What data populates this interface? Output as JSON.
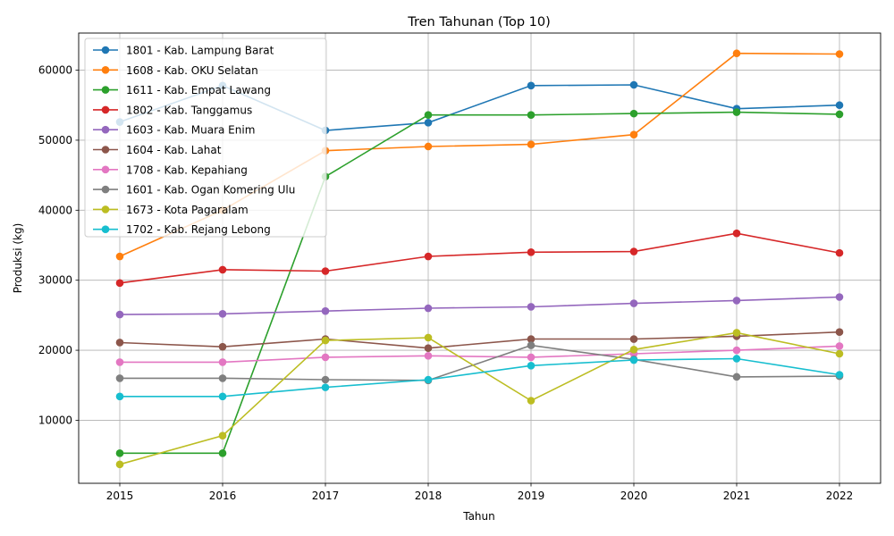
{
  "chart_data": {
    "type": "line",
    "title": "Tren Tahunan (Top 10)",
    "xlabel": "Tahun",
    "ylabel": "Produksi (kg)",
    "x": [
      2015,
      2016,
      2017,
      2018,
      2019,
      2020,
      2021,
      2022
    ],
    "xlim": [
      2014.6,
      2022.4
    ],
    "ylim": [
      1000,
      65300
    ],
    "yticks": [
      10000,
      20000,
      30000,
      40000,
      50000,
      60000
    ],
    "grid": true,
    "legend_position": "top-left",
    "series": [
      {
        "name": "1801 - Kab. Lampung Barat",
        "color": "#1f77b4",
        "values": [
          52600,
          57800,
          51400,
          52500,
          57800,
          57900,
          54500,
          55000
        ]
      },
      {
        "name": "1608 - Kab. OKU Selatan",
        "color": "#ff7f0e",
        "values": [
          33400,
          40000,
          48500,
          49100,
          49400,
          50800,
          62400,
          62300
        ]
      },
      {
        "name": "1611 - Kab. Empat Lawang",
        "color": "#2ca02c",
        "values": [
          5300,
          5300,
          44800,
          53600,
          53600,
          53800,
          54000,
          53700
        ]
      },
      {
        "name": "1802 - Kab. Tanggamus",
        "color": "#d62728",
        "values": [
          29600,
          31500,
          31300,
          33400,
          34000,
          34100,
          36700,
          33900
        ]
      },
      {
        "name": "1603 - Kab. Muara Enim",
        "color": "#9467bd",
        "values": [
          25100,
          25200,
          25600,
          26000,
          26200,
          26700,
          27100,
          27600
        ]
      },
      {
        "name": "1604 - Kab. Lahat",
        "color": "#8c564b",
        "values": [
          21100,
          20500,
          21600,
          20300,
          21600,
          21600,
          22000,
          22600
        ]
      },
      {
        "name": "1708 - Kab. Kepahiang",
        "color": "#e377c2",
        "values": [
          18300,
          18300,
          19000,
          19200,
          19000,
          19500,
          20000,
          20600
        ]
      },
      {
        "name": "1601 - Kab. Ogan Komering Ulu",
        "color": "#7f7f7f",
        "values": [
          16000,
          16000,
          15800,
          15700,
          20700,
          18700,
          16200,
          16300
        ]
      },
      {
        "name": "1673 - Kota Pagaralam",
        "color": "#bcbd22",
        "values": [
          3700,
          7800,
          21400,
          21800,
          12800,
          20100,
          22500,
          19500
        ]
      },
      {
        "name": "1702 - Kab. Rejang Lebong",
        "color": "#17becf",
        "values": [
          13400,
          13400,
          14700,
          15800,
          17800,
          18600,
          18800,
          16500
        ]
      }
    ]
  }
}
